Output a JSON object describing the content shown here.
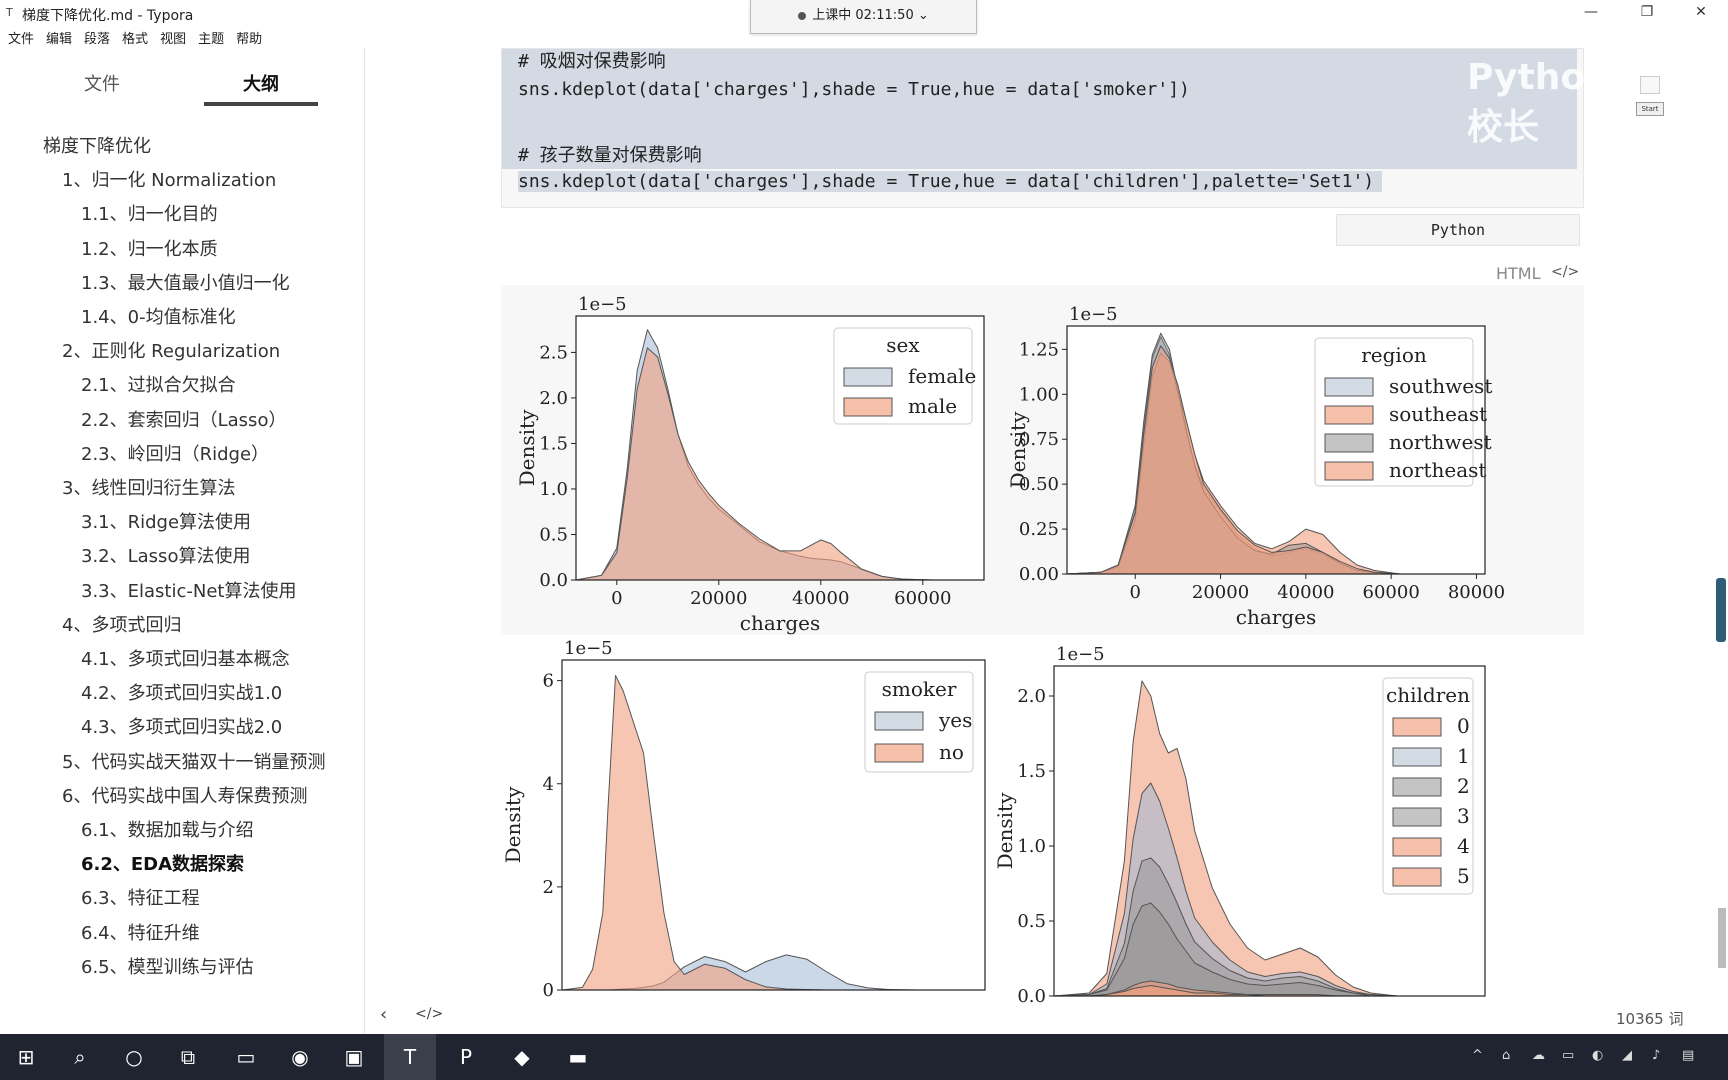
{
  "window": {
    "title": "梯度下降优化.md - Typora",
    "app_icon": "T",
    "minimize": "—",
    "maximize": "❐",
    "close": "✕"
  },
  "recording": {
    "label": "上课中 02:11:50"
  },
  "menu": [
    "文件",
    "编辑",
    "段落",
    "格式",
    "视图",
    "主题",
    "帮助"
  ],
  "sidebar": {
    "tabs": [
      "文件",
      "大纲"
    ],
    "active_tab": "大纲",
    "outline": [
      {
        "label": "梯度下降优化",
        "level": 1
      },
      {
        "label": "1、归一化 Normalization",
        "level": 2
      },
      {
        "label": "1.1、归一化目的",
        "level": 3
      },
      {
        "label": "1.2、归一化本质",
        "level": 3
      },
      {
        "label": "1.3、最大值最小值归一化",
        "level": 3
      },
      {
        "label": "1.4、0-均值标准化",
        "level": 3
      },
      {
        "label": "2、正则化 Regularization",
        "level": 2
      },
      {
        "label": "2.1、过拟合欠拟合",
        "level": 3
      },
      {
        "label": "2.2、套索回归（Lasso）",
        "level": 3
      },
      {
        "label": "2.3、岭回归（Ridge）",
        "level": 3
      },
      {
        "label": "3、线性回归衍生算法",
        "level": 2
      },
      {
        "label": "3.1、Ridge算法使用",
        "level": 3
      },
      {
        "label": "3.2、Lasso算法使用",
        "level": 3
      },
      {
        "label": "3.3、Elastic-Net算法使用",
        "level": 3
      },
      {
        "label": "4、多项式回归",
        "level": 2
      },
      {
        "label": "4.1、多项式回归基本概念",
        "level": 3
      },
      {
        "label": "4.2、多项式回归实战1.0",
        "level": 3
      },
      {
        "label": "4.3、多项式回归实战2.0",
        "level": 3
      },
      {
        "label": "5、代码实战天猫双十一销量预测",
        "level": 2
      },
      {
        "label": "6、代码实战中国人寿保费预测",
        "level": 2
      },
      {
        "label": "6.1、数据加载与介绍",
        "level": 3
      },
      {
        "label": "6.2、EDA数据探索",
        "level": 3,
        "active": true
      },
      {
        "label": "6.3、特征工程",
        "level": 3
      },
      {
        "label": "6.4、特征升维",
        "level": 3
      },
      {
        "label": "6.5、模型训练与评估",
        "level": 3
      }
    ],
    "footer_back": "‹",
    "footer_source": "</>"
  },
  "code": {
    "lines": [
      "# 吸烟对保费影响",
      "sns.kdeplot(data['charges'],shade = True,hue = data['smoker'])",
      "",
      "# 孩子数量对保费影响",
      "sns.kdeplot(data['charges'],shade = True,hue = data['children'],palette='Set1')"
    ],
    "language": "Python",
    "watermark": "Python校长"
  },
  "html_block": {
    "label": "HTML",
    "icon": "</>"
  },
  "start_label": "Start",
  "word_count": "10365 词",
  "colors": {
    "blue": "#9fb8d3",
    "orange": "#f2a07f",
    "gray": "#8d8d8d",
    "edge": "#555555"
  },
  "chart_data": [
    {
      "type": "area",
      "title": "",
      "scale_label": "1e−5",
      "xlabel": "charges",
      "ylabel": "Density",
      "xlim": [
        -8000,
        72000
      ],
      "ylim": [
        0,
        2.9
      ],
      "xticks": [
        0,
        20000,
        40000,
        60000
      ],
      "xtick_labels": [
        "0",
        "20000",
        "40000",
        "60000"
      ],
      "yticks": [
        0.0,
        0.5,
        1.0,
        1.5,
        2.0,
        2.5
      ],
      "ytick_labels": [
        "0.0",
        "0.5",
        "1.0",
        "1.5",
        "2.0",
        "2.5"
      ],
      "legend_title": "sex",
      "legend_position": "top-right",
      "x": [
        -8000,
        -3000,
        0,
        2000,
        4000,
        6000,
        8000,
        10000,
        12000,
        14000,
        16000,
        18000,
        20000,
        24000,
        28000,
        32000,
        36000,
        38000,
        40000,
        42000,
        44000,
        48000,
        52000,
        56000,
        62000,
        70000
      ],
      "series": [
        {
          "name": "female",
          "color": "blue",
          "values": [
            0,
            0.05,
            0.35,
            1.2,
            2.3,
            2.75,
            2.55,
            2.1,
            1.6,
            1.25,
            1.05,
            0.9,
            0.78,
            0.6,
            0.42,
            0.32,
            0.26,
            0.24,
            0.23,
            0.22,
            0.2,
            0.12,
            0.04,
            0.01,
            0,
            0
          ]
        },
        {
          "name": "male",
          "color": "orange",
          "values": [
            0,
            0.05,
            0.3,
            1.1,
            2.1,
            2.55,
            2.45,
            2.05,
            1.6,
            1.3,
            1.1,
            0.95,
            0.82,
            0.62,
            0.45,
            0.32,
            0.32,
            0.38,
            0.44,
            0.4,
            0.3,
            0.12,
            0.04,
            0.01,
            0,
            0
          ]
        }
      ]
    },
    {
      "type": "area",
      "title": "",
      "scale_label": "1e−5",
      "xlabel": "charges",
      "ylabel": "Density",
      "xlim": [
        -16000,
        82000
      ],
      "ylim": [
        0,
        1.38
      ],
      "xticks": [
        0,
        20000,
        40000,
        60000,
        80000
      ],
      "xtick_labels": [
        "0",
        "20000",
        "40000",
        "60000",
        "80000"
      ],
      "yticks": [
        0.0,
        0.25,
        0.5,
        0.75,
        1.0,
        1.25
      ],
      "ytick_labels": [
        "0.00",
        "0.25",
        "0.50",
        "0.75",
        "1.00",
        "1.25"
      ],
      "legend_title": "region",
      "legend_position": "top-right",
      "x": [
        -16000,
        -8000,
        -4000,
        0,
        2000,
        4000,
        6000,
        8000,
        10000,
        12000,
        14000,
        16000,
        20000,
        24000,
        28000,
        32000,
        36000,
        40000,
        44000,
        48000,
        52000,
        56000,
        62000,
        70000,
        80000
      ],
      "series": [
        {
          "name": "southwest",
          "color": "blue",
          "values": [
            0,
            0.01,
            0.05,
            0.35,
            0.8,
            1.2,
            1.32,
            1.22,
            1.0,
            0.78,
            0.6,
            0.48,
            0.35,
            0.22,
            0.14,
            0.1,
            0.12,
            0.14,
            0.11,
            0.06,
            0.02,
            0.01,
            0,
            0,
            0
          ]
        },
        {
          "name": "southeast",
          "color": "orange",
          "values": [
            0,
            0.01,
            0.04,
            0.3,
            0.72,
            1.1,
            1.23,
            1.18,
            1.02,
            0.85,
            0.66,
            0.52,
            0.38,
            0.26,
            0.17,
            0.14,
            0.18,
            0.25,
            0.22,
            0.12,
            0.05,
            0.02,
            0,
            0,
            0
          ]
        },
        {
          "name": "northwest",
          "color": "gray",
          "values": [
            0,
            0.01,
            0.05,
            0.38,
            0.85,
            1.22,
            1.34,
            1.25,
            1.02,
            0.8,
            0.6,
            0.46,
            0.32,
            0.2,
            0.13,
            0.11,
            0.16,
            0.17,
            0.12,
            0.06,
            0.02,
            0.01,
            0,
            0,
            0
          ]
        },
        {
          "name": "northeast",
          "color": "orange",
          "values": [
            0,
            0.01,
            0.05,
            0.34,
            0.78,
            1.15,
            1.27,
            1.2,
            1.05,
            0.85,
            0.66,
            0.5,
            0.36,
            0.24,
            0.16,
            0.12,
            0.13,
            0.15,
            0.12,
            0.07,
            0.03,
            0.01,
            0,
            0,
            0
          ]
        }
      ]
    },
    {
      "type": "area",
      "title": "",
      "scale_label": "1e−5",
      "xlabel": "",
      "ylabel": "Density",
      "xlim": [
        -8000,
        75000
      ],
      "ylim": [
        0,
        6.4
      ],
      "xticks": [],
      "xtick_labels": [],
      "yticks": [
        0,
        2,
        4,
        6
      ],
      "ytick_labels": [
        "0",
        "2",
        "4",
        "6"
      ],
      "legend_title": "smoker",
      "legend_position": "top-right",
      "x": [
        -8000,
        -4000,
        -2000,
        0,
        1000,
        2500,
        4000,
        6000,
        8000,
        10000,
        12000,
        14000,
        16000,
        20000,
        24000,
        28000,
        32000,
        36000,
        40000,
        44000,
        48000,
        52000,
        56000,
        62000,
        70000,
        75000
      ],
      "series": [
        {
          "name": "yes",
          "color": "blue",
          "values": [
            0,
            0,
            0,
            0,
            0,
            0.01,
            0.02,
            0.03,
            0.05,
            0.08,
            0.15,
            0.3,
            0.45,
            0.65,
            0.55,
            0.35,
            0.55,
            0.68,
            0.6,
            0.35,
            0.12,
            0.04,
            0.01,
            0,
            0,
            0
          ]
        },
        {
          "name": "no",
          "color": "orange",
          "values": [
            0,
            0.05,
            0.4,
            1.5,
            3.5,
            6.1,
            5.8,
            5.2,
            4.6,
            3.0,
            1.5,
            0.55,
            0.3,
            0.5,
            0.42,
            0.2,
            0.06,
            0.02,
            0.01,
            0,
            0,
            0,
            0,
            0,
            0,
            0
          ]
        }
      ]
    },
    {
      "type": "area",
      "title": "",
      "scale_label": "1e−5",
      "xlabel": "",
      "ylabel": "Density",
      "xlim": [
        -16000,
        82000
      ],
      "ylim": [
        0,
        2.2
      ],
      "xticks": [],
      "xtick_labels": [],
      "yticks": [
        0.0,
        0.5,
        1.0,
        1.5,
        2.0
      ],
      "ytick_labels": [
        "0.0",
        "0.5",
        "1.0",
        "1.5",
        "2.0"
      ],
      "legend_title": "children",
      "legend_position": "top-right",
      "x": [
        -16000,
        -8000,
        -4000,
        0,
        2000,
        4000,
        6000,
        8000,
        10000,
        12000,
        14000,
        16000,
        20000,
        24000,
        28000,
        32000,
        36000,
        40000,
        44000,
        48000,
        52000,
        56000,
        62000,
        70000,
        80000
      ],
      "series": [
        {
          "name": "0",
          "color": "orange",
          "values": [
            0,
            0.02,
            0.15,
            0.9,
            1.7,
            2.1,
            2.0,
            1.75,
            1.62,
            1.65,
            1.45,
            1.1,
            0.72,
            0.48,
            0.32,
            0.24,
            0.28,
            0.32,
            0.26,
            0.14,
            0.06,
            0.02,
            0,
            0,
            0
          ]
        },
        {
          "name": "1",
          "color": "blue",
          "values": [
            0,
            0.01,
            0.08,
            0.55,
            1.05,
            1.35,
            1.42,
            1.3,
            1.12,
            0.92,
            0.7,
            0.52,
            0.36,
            0.24,
            0.16,
            0.13,
            0.15,
            0.16,
            0.13,
            0.07,
            0.03,
            0.01,
            0,
            0,
            0
          ]
        },
        {
          "name": "2",
          "color": "gray",
          "values": [
            0,
            0.01,
            0.05,
            0.35,
            0.7,
            0.9,
            0.92,
            0.86,
            0.75,
            0.62,
            0.48,
            0.36,
            0.25,
            0.17,
            0.12,
            0.1,
            0.12,
            0.13,
            0.1,
            0.05,
            0.02,
            0.01,
            0,
            0,
            0
          ]
        },
        {
          "name": "3",
          "color": "gray",
          "values": [
            0,
            0.01,
            0.04,
            0.25,
            0.48,
            0.6,
            0.62,
            0.56,
            0.48,
            0.38,
            0.3,
            0.22,
            0.16,
            0.11,
            0.08,
            0.07,
            0.08,
            0.09,
            0.07,
            0.04,
            0.02,
            0,
            0,
            0,
            0
          ]
        },
        {
          "name": "4",
          "color": "orange",
          "values": [
            0,
            0,
            0.01,
            0.04,
            0.07,
            0.09,
            0.1,
            0.09,
            0.08,
            0.06,
            0.05,
            0.04,
            0.03,
            0.02,
            0.01,
            0.01,
            0.01,
            0.01,
            0.01,
            0,
            0,
            0,
            0,
            0,
            0
          ]
        },
        {
          "name": "5",
          "color": "orange",
          "values": [
            0,
            0,
            0.01,
            0.03,
            0.05,
            0.06,
            0.07,
            0.06,
            0.05,
            0.04,
            0.03,
            0.02,
            0.02,
            0.01,
            0.01,
            0,
            0,
            0,
            0,
            0,
            0,
            0,
            0,
            0,
            0
          ]
        }
      ]
    }
  ],
  "taskbar": {
    "items": [
      {
        "name": "start-button",
        "glyph": "⊞"
      },
      {
        "name": "search-taskbar-icon",
        "glyph": "⌕"
      },
      {
        "name": "cortana-icon",
        "glyph": "○"
      },
      {
        "name": "task-view-icon",
        "glyph": "⧉"
      },
      {
        "name": "file-explorer-icon",
        "glyph": "▭"
      },
      {
        "name": "chrome-icon",
        "glyph": "◉"
      },
      {
        "name": "video-app-icon",
        "glyph": "▣"
      },
      {
        "name": "typora-icon",
        "glyph": "T"
      },
      {
        "name": "ppt-icon",
        "glyph": "P"
      },
      {
        "name": "app-icon",
        "glyph": "◆"
      },
      {
        "name": "terminal-icon",
        "glyph": "▬"
      }
    ],
    "tray": [
      "^",
      "⌂",
      "☁",
      "▭",
      "◐",
      "◢",
      "♪",
      "▤"
    ]
  }
}
